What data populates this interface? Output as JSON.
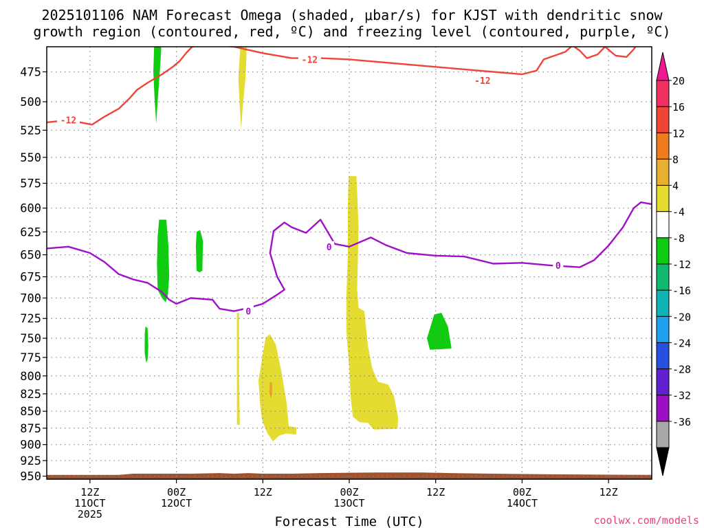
{
  "title_line1": "2025101106 NAM Forecast Omega (shaded, μbar/s) for KJST with dendritic snow",
  "title_line2": "growth region (contoured, red, ºC) and freezing level (contoured, purple, ºC)",
  "watermark": "coolwx.com/models",
  "colors": {
    "dgz_contour": "#f04438",
    "freezing_contour": "#a010c8",
    "upward_green": "#10cc10",
    "downward_yellow": "#e4dc30",
    "strong_orange": "#f0a030",
    "terrain": "#a0522d",
    "grid": "#888888"
  },
  "chart_data": {
    "type": "heatmap",
    "title": "2025101106 NAM Forecast Omega (shaded, μbar/s) for KJST with dendritic snow growth region (contoured, red, ºC) and freezing level (contoured, purple, ºC)",
    "xlabel": "Forecast Time (UTC)",
    "ylabel": "",
    "x_unit": "hours from 2025-10-11 06Z",
    "xlim": [
      0,
      84
    ],
    "ylim": [
      955,
      455
    ],
    "y_scale": "log-pressure",
    "grid": true,
    "y_ticks": [
      475,
      500,
      525,
      550,
      575,
      600,
      625,
      650,
      675,
      700,
      725,
      750,
      775,
      800,
      825,
      850,
      875,
      900,
      925,
      950
    ],
    "x_ticks": [
      {
        "x": 6,
        "lines": [
          "12Z",
          "11OCT",
          "2025"
        ]
      },
      {
        "x": 18,
        "lines": [
          "00Z",
          "12OCT"
        ]
      },
      {
        "x": 30,
        "lines": [
          "12Z"
        ]
      },
      {
        "x": 42,
        "lines": [
          "00Z",
          "13OCT"
        ]
      },
      {
        "x": 54,
        "lines": [
          "12Z"
        ]
      },
      {
        "x": 66,
        "lines": [
          "00Z",
          "14OCT"
        ]
      },
      {
        "x": 78,
        "lines": [
          "12Z"
        ]
      }
    ],
    "colorbar": {
      "labels": [
        "20",
        "16",
        "12",
        "8",
        "4",
        "-4",
        "-8",
        "-12",
        "-16",
        "-20",
        "-24",
        "-28",
        "-32",
        "-36"
      ],
      "colors": [
        "#f03060",
        "#f04438",
        "#f07c20",
        "#e8b030",
        "#e4dc30",
        "#ffffff",
        "#10cc10",
        "#10b870",
        "#10b4b4",
        "#20a0f0",
        "#2850e0",
        "#6020d0",
        "#9c10c4",
        "#a8a8a8"
      ],
      "top_arrow_color": "#f01890",
      "bottom_arrow_color": "#000000"
    },
    "contours": [
      {
        "name": "-12",
        "color": "#f04438",
        "labels": [
          {
            "x": 3.0,
            "p": 516,
            "text": "-12"
          },
          {
            "x": 36.5,
            "p": 465,
            "text": "-12"
          },
          {
            "x": 60.5,
            "p": 482,
            "text": "-12"
          }
        ],
        "points": [
          [
            0,
            518
          ],
          [
            3,
            516
          ],
          [
            6.3,
            520
          ],
          [
            8,
            513
          ],
          [
            10,
            506
          ],
          [
            11.5,
            497
          ],
          [
            12.5,
            490
          ],
          [
            14,
            484
          ],
          [
            16,
            477
          ],
          [
            17.5,
            471
          ],
          [
            18.5,
            466
          ],
          [
            19.5,
            459
          ],
          [
            20.2,
            455
          ],
          [
            22,
            453
          ],
          [
            26,
            455
          ],
          [
            30,
            460
          ],
          [
            34,
            464
          ],
          [
            38,
            464
          ],
          [
            42,
            465
          ],
          [
            46,
            467
          ],
          [
            50,
            469
          ],
          [
            54,
            471
          ],
          [
            58,
            473
          ],
          [
            62,
            475
          ],
          [
            66,
            477
          ],
          [
            68,
            474
          ],
          [
            69,
            465
          ],
          [
            71,
            461
          ],
          [
            72,
            459
          ],
          [
            73,
            454
          ],
          [
            74,
            458
          ],
          [
            75,
            464
          ],
          [
            76.5,
            461
          ],
          [
            77.5,
            455
          ],
          [
            79,
            462
          ],
          [
            80.5,
            463
          ],
          [
            81.5,
            457
          ],
          [
            82,
            453
          ],
          [
            84,
            455
          ]
        ]
      },
      {
        "name": "0",
        "color": "#a010c8",
        "labels": [
          {
            "x": 28.0,
            "p": 716,
            "text": "0"
          },
          {
            "x": 39.2,
            "p": 641,
            "text": "0"
          },
          {
            "x": 71.0,
            "p": 662,
            "text": "0"
          }
        ],
        "points": [
          [
            0,
            643
          ],
          [
            3,
            641
          ],
          [
            6,
            648
          ],
          [
            8,
            658
          ],
          [
            10,
            672
          ],
          [
            12,
            678
          ],
          [
            14,
            682
          ],
          [
            16,
            693
          ],
          [
            17,
            702
          ],
          [
            18,
            707
          ],
          [
            20,
            700
          ],
          [
            23,
            702
          ],
          [
            24,
            713
          ],
          [
            26,
            716
          ],
          [
            28,
            712
          ],
          [
            30,
            707
          ],
          [
            32,
            696
          ],
          [
            33,
            690
          ],
          [
            32,
            675
          ],
          [
            31,
            648
          ],
          [
            31.5,
            624
          ],
          [
            33,
            615
          ],
          [
            34,
            620
          ],
          [
            36,
            626
          ],
          [
            38,
            612
          ],
          [
            40,
            638
          ],
          [
            42,
            641
          ],
          [
            45,
            631
          ],
          [
            47,
            639
          ],
          [
            50,
            648
          ],
          [
            54,
            651
          ],
          [
            58,
            652
          ],
          [
            62,
            660
          ],
          [
            66,
            659
          ],
          [
            70,
            662
          ],
          [
            74,
            664
          ],
          [
            76,
            656
          ],
          [
            78,
            640
          ],
          [
            80,
            620
          ],
          [
            81.5,
            600
          ],
          [
            82.5,
            594
          ],
          [
            84,
            596
          ]
        ]
      }
    ],
    "shaded_regions": [
      {
        "value_range": [
          -8,
          -4
        ],
        "color": "#10cc10",
        "points": [
          [
            15.4,
            452
          ],
          [
            15.9,
            456
          ],
          [
            15.7,
            475
          ],
          [
            15.4,
            500
          ],
          [
            15.2,
            519
          ],
          [
            15.0,
            500
          ],
          [
            14.8,
            475
          ],
          [
            14.9,
            456
          ],
          [
            15.0,
            452
          ]
        ]
      },
      {
        "value_range": [
          4,
          8
        ],
        "color": "#e4dc30",
        "points": [
          [
            27.2,
            452
          ],
          [
            27.8,
            452
          ],
          [
            27.6,
            480
          ],
          [
            27.2,
            505
          ],
          [
            27.0,
            524
          ],
          [
            26.8,
            505
          ],
          [
            26.6,
            480
          ],
          [
            26.9,
            452
          ]
        ]
      },
      {
        "value_range": [
          -8,
          -4
        ],
        "color": "#10cc10",
        "points": [
          [
            15.6,
            612
          ],
          [
            16.6,
            612
          ],
          [
            16.9,
            640
          ],
          [
            17.0,
            675
          ],
          [
            16.8,
            698
          ],
          [
            16.5,
            705
          ],
          [
            16.0,
            700
          ],
          [
            15.4,
            690
          ],
          [
            15.3,
            660
          ],
          [
            15.4,
            630
          ]
        ]
      },
      {
        "value_range": [
          -8,
          -4
        ],
        "color": "#10cc10",
        "points": [
          [
            20.8,
            625
          ],
          [
            21.3,
            623
          ],
          [
            21.7,
            635
          ],
          [
            21.6,
            668
          ],
          [
            21.2,
            670
          ],
          [
            20.8,
            668
          ],
          [
            20.7,
            640
          ]
        ]
      },
      {
        "value_range": [
          -8,
          -4
        ],
        "color": "#10cc10",
        "points": [
          [
            13.7,
            735
          ],
          [
            14.0,
            737
          ],
          [
            14.1,
            760
          ],
          [
            14.0,
            778
          ],
          [
            13.8,
            782
          ],
          [
            13.6,
            770
          ],
          [
            13.6,
            745
          ]
        ]
      },
      {
        "value_range": [
          -8,
          -4
        ],
        "color": "#10cc10",
        "points": [
          [
            53.8,
            720
          ],
          [
            54.8,
            718
          ],
          [
            55.7,
            735
          ],
          [
            56.2,
            763
          ],
          [
            55.0,
            764
          ],
          [
            53.2,
            765
          ],
          [
            52.8,
            750
          ]
        ]
      },
      {
        "value_range": [
          4,
          8
        ],
        "color": "#e4dc30",
        "points": [
          [
            26.4,
            718
          ],
          [
            26.7,
            718
          ],
          [
            26.7,
            800
          ],
          [
            26.8,
            870
          ],
          [
            26.4,
            870
          ],
          [
            26.4,
            800
          ]
        ]
      },
      {
        "value_range": [
          4,
          8
        ],
        "color": "#e4dc30",
        "points": [
          [
            30.4,
            749
          ],
          [
            31.0,
            745
          ],
          [
            31.8,
            758
          ],
          [
            32.6,
            795
          ],
          [
            33.3,
            838
          ],
          [
            33.6,
            872
          ],
          [
            34.7,
            874
          ],
          [
            34.6,
            885
          ],
          [
            33.3,
            883
          ],
          [
            32.3,
            886
          ],
          [
            31.4,
            895
          ],
          [
            30.6,
            882
          ],
          [
            29.9,
            863
          ],
          [
            29.6,
            838
          ],
          [
            29.4,
            806
          ],
          [
            29.6,
            795
          ],
          [
            30.0,
            770
          ]
        ]
      },
      {
        "value_range": [
          8,
          12
        ],
        "color": "#f0a030",
        "points": [
          [
            31.0,
            808
          ],
          [
            31.3,
            810
          ],
          [
            31.3,
            825
          ],
          [
            31.1,
            832
          ],
          [
            30.9,
            822
          ]
        ]
      },
      {
        "value_range": [
          4,
          8
        ],
        "color": "#e4dc30",
        "points": [
          [
            41.9,
            568
          ],
          [
            43.0,
            568
          ],
          [
            43.3,
            620
          ],
          [
            43.1,
            690
          ],
          [
            43.3,
            712
          ],
          [
            44.1,
            716
          ],
          [
            44.6,
            760
          ],
          [
            45.2,
            790
          ],
          [
            46.0,
            808
          ],
          [
            47.4,
            812
          ],
          [
            48.2,
            828
          ],
          [
            48.8,
            860
          ],
          [
            48.7,
            876
          ],
          [
            45.4,
            877
          ],
          [
            44.6,
            867
          ],
          [
            43.4,
            866
          ],
          [
            42.5,
            858
          ],
          [
            42.2,
            830
          ],
          [
            42.0,
            790
          ],
          [
            41.6,
            740
          ],
          [
            41.6,
            700
          ],
          [
            41.8,
            650
          ],
          [
            41.8,
            600
          ]
        ]
      }
    ],
    "terrain_top_hpa": [
      [
        0,
        948
      ],
      [
        10,
        948
      ],
      [
        12,
        946
      ],
      [
        20,
        946
      ],
      [
        24,
        945
      ],
      [
        26,
        946
      ],
      [
        28,
        945
      ],
      [
        30,
        946
      ],
      [
        34,
        946
      ],
      [
        38,
        945
      ],
      [
        46,
        944
      ],
      [
        52,
        944
      ],
      [
        56,
        945
      ],
      [
        62,
        946
      ],
      [
        70,
        947
      ],
      [
        84,
        948
      ]
    ]
  }
}
